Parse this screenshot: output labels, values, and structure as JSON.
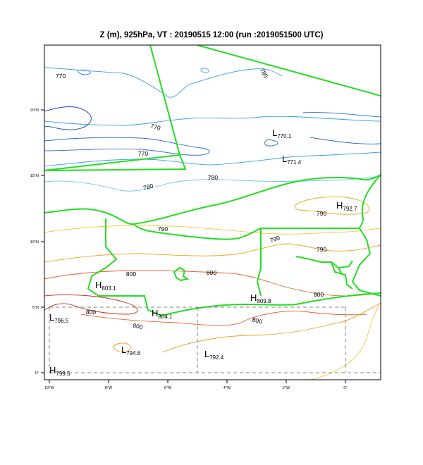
{
  "title": "Z (m), 925hPa, VT : 20190515  12:00 (run :2019051500 UTC)",
  "y_ticks": [
    "20°N",
    "15°N",
    "10°N",
    "5°N",
    "0°"
  ],
  "x_ticks": [
    "10°W",
    "8°W",
    "6°W",
    "4°W",
    "2°W",
    "0°"
  ],
  "contour_labels": [
    "770",
    "780",
    "770",
    "770",
    "780",
    "780",
    "790",
    "790",
    "790",
    "790",
    "800",
    "800",
    "800",
    "800",
    "800"
  ],
  "pressure_centers": [
    {
      "type": "L",
      "value": "770.1"
    },
    {
      "type": "L",
      "value": "771.4"
    },
    {
      "type": "H",
      "value": "792.7"
    },
    {
      "type": "H",
      "value": "803.1"
    },
    {
      "type": "H",
      "value": "809.8"
    },
    {
      "type": "H",
      "value": "804.1"
    },
    {
      "type": "L",
      "value": "796.5"
    },
    {
      "type": "L",
      "value": "794.6"
    },
    {
      "type": "L",
      "value": "792.4"
    },
    {
      "type": "H",
      "value": "799.5"
    }
  ],
  "colors": {
    "border": "#22dd22",
    "c770": "#1a3fb0",
    "c770b": "#2a6ad0",
    "c780": "#3a9ee8",
    "c780b": "#6ec2f0",
    "c790": "#f5c842",
    "c795": "#f0a020",
    "c800": "#e8602a",
    "c805": "#cc2a1a",
    "grid": "#808080"
  }
}
